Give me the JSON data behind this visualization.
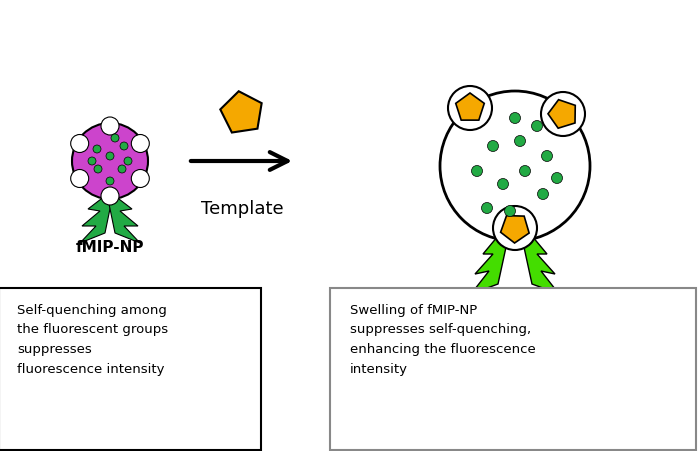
{
  "bg_color": "#ffffff",
  "fmip_body_color": "#cc44cc",
  "fmip_dot_color": "#22aa44",
  "fmip_spine_color": "#22aa44",
  "template_color": "#f5a800",
  "swollen_dot_color": "#22aa44",
  "flash_color": "#44dd00",
  "label_fmip": "fMIP-NP",
  "label_template": "Template",
  "text_left": "Self-quenching among\nthe fluorescent groups\nsuppresses\nfluorescence intensity",
  "text_right": "Swelling of fMIP-NP\nsuppresses self-quenching,\nenhancing the fluorescence\nintensity"
}
